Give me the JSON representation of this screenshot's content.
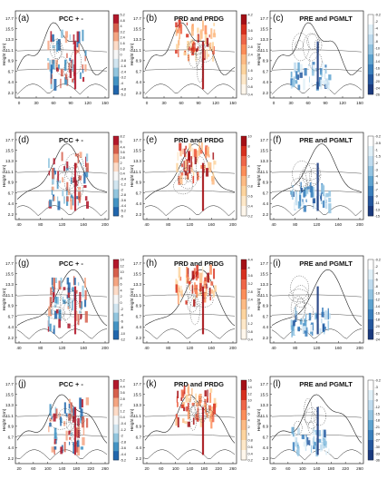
{
  "figure": {
    "ylabel": "Height (km)",
    "panels": [
      {
        "id": "a",
        "tag": "(a)",
        "title": "PCC + -",
        "kind": "pcc",
        "xticks": [
          "0",
          "30",
          "60",
          "90",
          "120",
          "150"
        ],
        "cbar_ticks": [
          "5.2",
          "4.8",
          "4",
          "3.2",
          "2.4",
          "1.6",
          "0.8",
          "0",
          "-0.8",
          "-1.6",
          "-2.4",
          "-3.2",
          "-4",
          "-4.8",
          "-5.2"
        ]
      },
      {
        "id": "b",
        "tag": "(b)",
        "title": "PRD and PRDG",
        "kind": "prd",
        "xticks": [
          "0",
          "30",
          "60",
          "90",
          "120",
          "150"
        ],
        "cbar_ticks": [
          "4.2",
          "4",
          "3.6",
          "3.2",
          "2.8",
          "2.4",
          "2",
          "1.6",
          "1.2",
          "0.8",
          "0.4"
        ]
      },
      {
        "id": "c",
        "tag": "(c)",
        "title": "PRE and PGMLT",
        "kind": "pre",
        "xticks": [
          "0",
          "30",
          "60",
          "90",
          "120",
          "150"
        ],
        "cbar_ticks": [
          "-0.2",
          "-2",
          "-4",
          "-6",
          "-8",
          "-10",
          "-12",
          "-14",
          "-16",
          "-18",
          "-20",
          "-24",
          "-26"
        ]
      },
      {
        "id": "d",
        "tag": "(d)",
        "title": "PCC + -",
        "kind": "pcc",
        "xticks": [
          "40",
          "80",
          "120",
          "160",
          "200"
        ],
        "cbar_ticks": [
          "8.2",
          "6",
          "4.4",
          "3.6",
          "2.8",
          "2",
          "1.2",
          "0.4",
          "-0.4",
          "-1.2",
          "-2",
          "-2.8",
          "-3.6",
          "-4.4",
          "-5.2",
          "-6"
        ]
      },
      {
        "id": "e",
        "tag": "(e)",
        "title": "PRD and PRDG",
        "kind": "prd",
        "xticks": [
          "40",
          "80",
          "120",
          "160",
          "200"
        ],
        "cbar_ticks": [
          "10",
          "8",
          "6",
          "4",
          "2",
          "0.8",
          "0.6",
          "0.4",
          "0.2"
        ]
      },
      {
        "id": "f",
        "tag": "(f)",
        "title": "PRE and PGMLT",
        "kind": "pre",
        "xticks": [
          "40",
          "80",
          "120",
          "160",
          "200"
        ],
        "cbar_ticks": [
          "-0.2",
          "-0.5",
          "-1",
          "-1.5",
          "-2",
          "-3",
          "-4",
          "-5",
          "-7",
          "-9",
          "-11",
          "-13",
          "-15"
        ]
      },
      {
        "id": "g",
        "tag": "(g)",
        "title": "PCC + -",
        "kind": "pcc",
        "xticks": [
          "40",
          "80",
          "120",
          "160",
          "200"
        ],
        "cbar_ticks": [
          "14",
          "12",
          "10",
          "8",
          "6",
          "4",
          "2",
          "0",
          "-2",
          "-4",
          "-6",
          "-8",
          "-10",
          "-12"
        ]
      },
      {
        "id": "h",
        "tag": "(h)",
        "title": "PRD and PRDG",
        "kind": "prd",
        "xticks": [
          "40",
          "80",
          "120",
          "160",
          "200"
        ],
        "cbar_ticks": [
          "4.4",
          "4",
          "3.6",
          "3.2",
          "2.8",
          "2.4",
          "2",
          "1.6",
          "1.2",
          "0.8",
          "0.4"
        ]
      },
      {
        "id": "i",
        "tag": "(i)",
        "title": "PRE and PGMLT",
        "kind": "pre",
        "xticks": [
          "40",
          "80",
          "120",
          "160",
          "200"
        ],
        "cbar_ticks": [
          "-0.2",
          "-2",
          "-4",
          "-6",
          "-8",
          "-10",
          "-12",
          "-14",
          "-16",
          "-18",
          "-20",
          "-22",
          "-24"
        ]
      },
      {
        "id": "j",
        "tag": "(j)",
        "title": "PCC + -",
        "kind": "pcc",
        "xticks": [
          "20",
          "60",
          "100",
          "140",
          "180",
          "220",
          "260"
        ],
        "cbar_ticks": [
          "5.2",
          "4.4",
          "3.6",
          "2.8",
          "2",
          "1.2",
          "0.4",
          "-0.4",
          "-1.2",
          "-2",
          "-2.8",
          "-3.6",
          "-4.4",
          "-5.2"
        ]
      },
      {
        "id": "k",
        "tag": "(k)",
        "title": "PRD and PRDG",
        "kind": "prd",
        "xticks": [
          "20",
          "60",
          "100",
          "140",
          "180",
          "220",
          "260"
        ],
        "cbar_ticks": [
          "16",
          "14",
          "12",
          "10",
          "8",
          "6",
          "4",
          "2",
          "1",
          "0.8",
          "0.6",
          "0.4",
          "0.2"
        ]
      },
      {
        "id": "l",
        "tag": "(l)",
        "title": "PRE and PGMLT",
        "kind": "pre",
        "xticks": [
          "20",
          "60",
          "100",
          "140",
          "180",
          "220",
          "260"
        ],
        "cbar_ticks": [
          "-0.2",
          "-3",
          "-6",
          "-9",
          "-12",
          "-15",
          "-18",
          "-21",
          "-24",
          "-27",
          "-30",
          "-33",
          "-36"
        ]
      }
    ]
  },
  "chart_data": {
    "type": "heatmap",
    "layout": "4 rows x 3 columns of height-distance cross sections",
    "ylabel": "Height (km)",
    "yticks": [
      "2.2",
      "4.4",
      "6.7",
      "8.9",
      "11.1",
      "13.3",
      "15.5",
      "17.7"
    ],
    "ylim": [
      0,
      18
    ],
    "colorscales": {
      "pcc": "diverging blue-white-red",
      "prd": "sequential yellow-orange-red",
      "pre": "sequential white-light blue-dark blue"
    },
    "line_color": "#1a1a1a",
    "accent_colors": {
      "red": "#c0281c",
      "orange": "#f09a3e",
      "yellow": "#f7d37a",
      "blue": "#3b7fc4",
      "dark_blue": "#1f3a8a"
    }
  }
}
